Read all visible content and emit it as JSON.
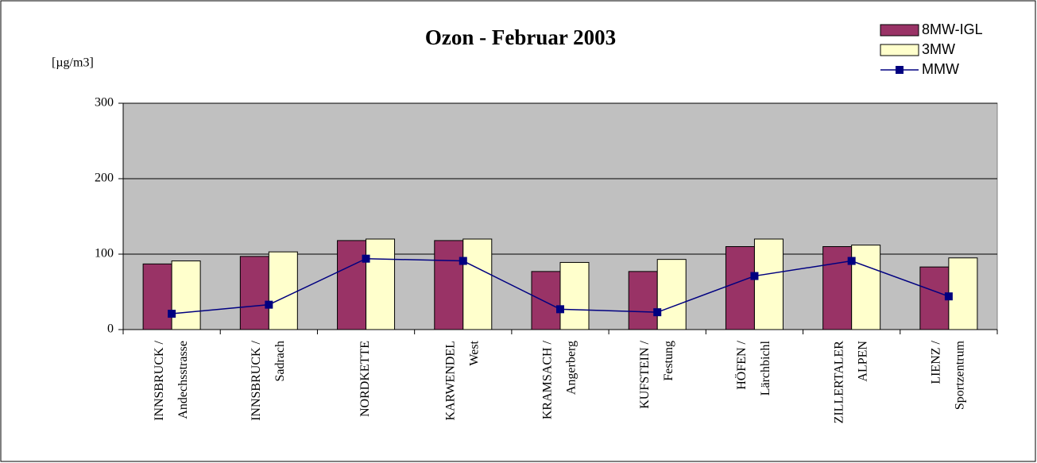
{
  "chart_data": {
    "type": "bar",
    "title": "Ozon - Februar 2003",
    "y_label": "[µg/m3]",
    "categories": [
      [
        "INNSBRUCK /",
        "Andechsstrasse"
      ],
      [
        "INNSBRUCK /",
        "Sadrach"
      ],
      [
        "NORDKETTE"
      ],
      [
        "KARWENDEL",
        "West"
      ],
      [
        "KRAMSACH /",
        "Angerberg"
      ],
      [
        "KUFSTEIN /",
        "Festung"
      ],
      [
        "HÖFEN /",
        "Lärchbichl"
      ],
      [
        "ZILLERTALER",
        "ALPEN"
      ],
      [
        "LIENZ /",
        "Sportzentrum"
      ]
    ],
    "series": [
      {
        "name": "8MW-IGL",
        "type": "bar",
        "color": "#993366",
        "values": [
          87,
          97,
          118,
          118,
          77,
          77,
          110,
          110,
          83
        ]
      },
      {
        "name": "3MW",
        "type": "bar",
        "color": "#ffffcc",
        "values": [
          91,
          103,
          120,
          120,
          89,
          93,
          120,
          112,
          95
        ]
      },
      {
        "name": "MMW",
        "type": "line",
        "color": "#000080",
        "values": [
          21,
          33,
          94,
          91,
          27,
          23,
          71,
          91,
          44
        ]
      }
    ],
    "ylim": [
      0,
      300
    ],
    "yticks": [
      0,
      100,
      200,
      300
    ],
    "grid": true,
    "legend": "top-right",
    "plot_background": "#c0c0c0"
  }
}
